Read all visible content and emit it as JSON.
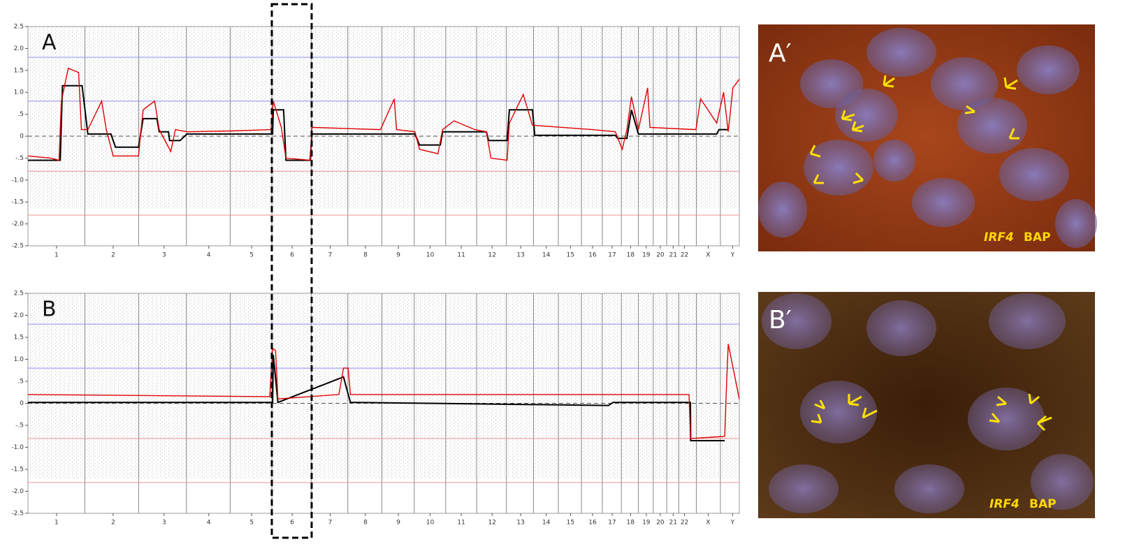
{
  "chart_data": [
    {
      "type": "line",
      "panel_label": "A",
      "xlim": [
        0,
        3088
      ],
      "ylim": [
        -2.5,
        2.5
      ],
      "yticks": [
        2.5,
        {
          "value": 2,
          "label": "2.0"
        },
        1.5,
        {
          "value": 1,
          "label": "1.0"
        },
        {
          "value": 0.5,
          "label": ".5"
        },
        0,
        {
          "value": -0.5,
          "label": "-.5"
        },
        {
          "value": -1,
          "label": "-1.0"
        },
        -1.5,
        {
          "value": -2,
          "label": "-2.0"
        },
        -2.5
      ],
      "xticks": [
        {
          "value": 124,
          "label": "1"
        },
        {
          "value": 370,
          "label": "2"
        },
        {
          "value": 591,
          "label": "3"
        },
        {
          "value": 785,
          "label": "4"
        },
        {
          "value": 971,
          "label": "5"
        },
        {
          "value": 1147,
          "label": "6"
        },
        {
          "value": 1312,
          "label": "7"
        },
        {
          "value": 1465,
          "label": "8"
        },
        {
          "value": 1608,
          "label": "9"
        },
        {
          "value": 1746,
          "label": "10"
        },
        {
          "value": 1881,
          "label": "11"
        },
        {
          "value": 2015,
          "label": "12"
        },
        {
          "value": 2139,
          "label": "13"
        },
        {
          "value": 2250,
          "label": "14"
        },
        {
          "value": 2355,
          "label": "15"
        },
        {
          "value": 2451,
          "label": "16"
        },
        {
          "value": 2536,
          "label": "17"
        },
        {
          "value": 2616,
          "label": "18"
        },
        {
          "value": 2684,
          "label": "19"
        },
        {
          "value": 2745,
          "label": "20"
        },
        {
          "value": 2801,
          "label": "21"
        },
        {
          "value": 2850,
          "label": "22"
        },
        {
          "value": 2953,
          "label": "X"
        },
        {
          "value": 3059,
          "label": "Y"
        }
      ],
      "reference_lines": [
        {
          "value": 1.8,
          "color": "#8c8cf0"
        },
        {
          "value": 0.8,
          "color": "#8c8cf0"
        },
        {
          "value": 0,
          "color": "#555555"
        },
        {
          "value": -0.8,
          "color": "#f09090"
        },
        {
          "value": -1.8,
          "color": "#f09090"
        }
      ],
      "series": [
        {
          "color": "#000000",
          "x": [
            0,
            140,
            150,
            235,
            260,
            360,
            380,
            480,
            500,
            560,
            570,
            610,
            615,
            660,
            690,
            1062,
            1065,
            1110,
            1120,
            1225,
            1233,
            1680,
            1700,
            1790,
            1800,
            1990,
            2000,
            2080,
            2090,
            2190,
            2200,
            2550,
            2560,
            2600,
            2620,
            2650,
            2900,
            2990,
            3000,
            3040
          ],
          "values": [
            -0.55,
            -0.55,
            1.15,
            1.15,
            0.05,
            0.05,
            -0.25,
            -0.25,
            0.4,
            0.4,
            0.1,
            0.1,
            -0.1,
            -0.1,
            0.05,
            0.05,
            0.6,
            0.6,
            -0.55,
            -0.55,
            0.05,
            0.05,
            -0.2,
            -0.2,
            0.1,
            0.1,
            -0.1,
            -0.1,
            0.6,
            0.6,
            0.02,
            0.02,
            -0.05,
            -0.05,
            0.6,
            0.05,
            0.05,
            0.05,
            0.15,
            0.15
          ]
        },
        {
          "color": "#e00000",
          "x": [
            0,
            100,
            135,
            145,
            175,
            220,
            232,
            249,
            260,
            320,
            340,
            370,
            480,
            490,
            500,
            550,
            570,
            620,
            640,
            690,
            880,
            1055,
            1065,
            1100,
            1120,
            1225,
            1233,
            1530,
            1590,
            1600,
            1680,
            1700,
            1780,
            1800,
            1850,
            1940,
            1990,
            2010,
            2080,
            2090,
            2150,
            2190,
            2450,
            2550,
            2580,
            2600,
            2620,
            2650,
            2690,
            2700,
            2900,
            2920,
            2990,
            3020,
            3040,
            3060,
            3088
          ],
          "values": [
            -0.45,
            -0.5,
            -0.55,
            0.8,
            1.55,
            1.45,
            0.15,
            0.15,
            0.15,
            0.8,
            0.15,
            -0.45,
            -0.45,
            0.1,
            0.6,
            0.8,
            0.15,
            -0.35,
            0.15,
            0.1,
            0.12,
            0.15,
            0.8,
            0.2,
            -0.5,
            -0.55,
            0.2,
            0.15,
            0.85,
            0.15,
            0.1,
            -0.3,
            -0.4,
            0.15,
            0.35,
            0.15,
            0.1,
            -0.5,
            -0.55,
            0.3,
            0.95,
            0.25,
            0.15,
            0.1,
            -0.3,
            0.15,
            0.9,
            0.15,
            1.1,
            0.2,
            0.15,
            0.85,
            0.3,
            1.0,
            0.1,
            1.1,
            1.3
          ]
        }
      ]
    },
    {
      "type": "line",
      "panel_label": "B",
      "xlim": [
        0,
        3088
      ],
      "ylim": [
        -2.5,
        2.5
      ],
      "yticks": [
        2.5,
        {
          "value": 2,
          "label": "2.0"
        },
        1.5,
        {
          "value": 1,
          "label": "1.0"
        },
        {
          "value": 0.5,
          "label": ".5"
        },
        0,
        {
          "value": -0.5,
          "label": "-.5"
        },
        {
          "value": -1,
          "label": "-1.0"
        },
        -1.5,
        {
          "value": -2,
          "label": "-2.0"
        },
        -2.5
      ],
      "xticks": [
        {
          "value": 124,
          "label": "1"
        },
        {
          "value": 370,
          "label": "2"
        },
        {
          "value": 591,
          "label": "3"
        },
        {
          "value": 785,
          "label": "4"
        },
        {
          "value": 971,
          "label": "5"
        },
        {
          "value": 1147,
          "label": "6"
        },
        {
          "value": 1312,
          "label": "7"
        },
        {
          "value": 1465,
          "label": "8"
        },
        {
          "value": 1608,
          "label": "9"
        },
        {
          "value": 1746,
          "label": "10"
        },
        {
          "value": 1881,
          "label": "11"
        },
        {
          "value": 2015,
          "label": "12"
        },
        {
          "value": 2139,
          "label": "13"
        },
        {
          "value": 2250,
          "label": "14"
        },
        {
          "value": 2355,
          "label": "15"
        },
        {
          "value": 2451,
          "label": "16"
        },
        {
          "value": 2536,
          "label": "17"
        },
        {
          "value": 2616,
          "label": "18"
        },
        {
          "value": 2684,
          "label": "19"
        },
        {
          "value": 2745,
          "label": "20"
        },
        {
          "value": 2801,
          "label": "21"
        },
        {
          "value": 2850,
          "label": "22"
        },
        {
          "value": 2953,
          "label": "X"
        },
        {
          "value": 3059,
          "label": "Y"
        }
      ],
      "reference_lines": [
        {
          "value": 1.8,
          "color": "#8c8cf0"
        },
        {
          "value": 0.8,
          "color": "#8c8cf0"
        },
        {
          "value": 0,
          "color": "#555555"
        },
        {
          "value": -0.8,
          "color": "#f09090"
        },
        {
          "value": -1.8,
          "color": "#f09090"
        }
      ],
      "series": [
        {
          "color": "#000000",
          "x": [
            0,
            1062,
            1065,
            1085,
            1370,
            1400,
            2520,
            2540,
            2876,
            2877,
            3025
          ],
          "values": [
            0.02,
            0.02,
            1.1,
            0.02,
            0.6,
            0.02,
            -0.05,
            0.02,
            0.02,
            -0.85,
            -0.85
          ]
        },
        {
          "color": "#e00000",
          "x": [
            0,
            1050,
            1062,
            1075,
            1085,
            1350,
            1370,
            1390,
            1400,
            2870,
            2876,
            3025,
            3031,
            3040,
            3088
          ],
          "values": [
            0.2,
            0.15,
            1.25,
            1.2,
            0.1,
            0.2,
            0.8,
            0.8,
            0.2,
            0.2,
            -0.8,
            -0.75,
            0.2,
            1.35,
            0.1
          ]
        }
      ]
    }
  ],
  "images": [
    {
      "label": "A′",
      "probe": "IRF4",
      "assay": "BAP"
    },
    {
      "label": "B′",
      "probe": "IRF4",
      "assay": "BAP"
    }
  ]
}
